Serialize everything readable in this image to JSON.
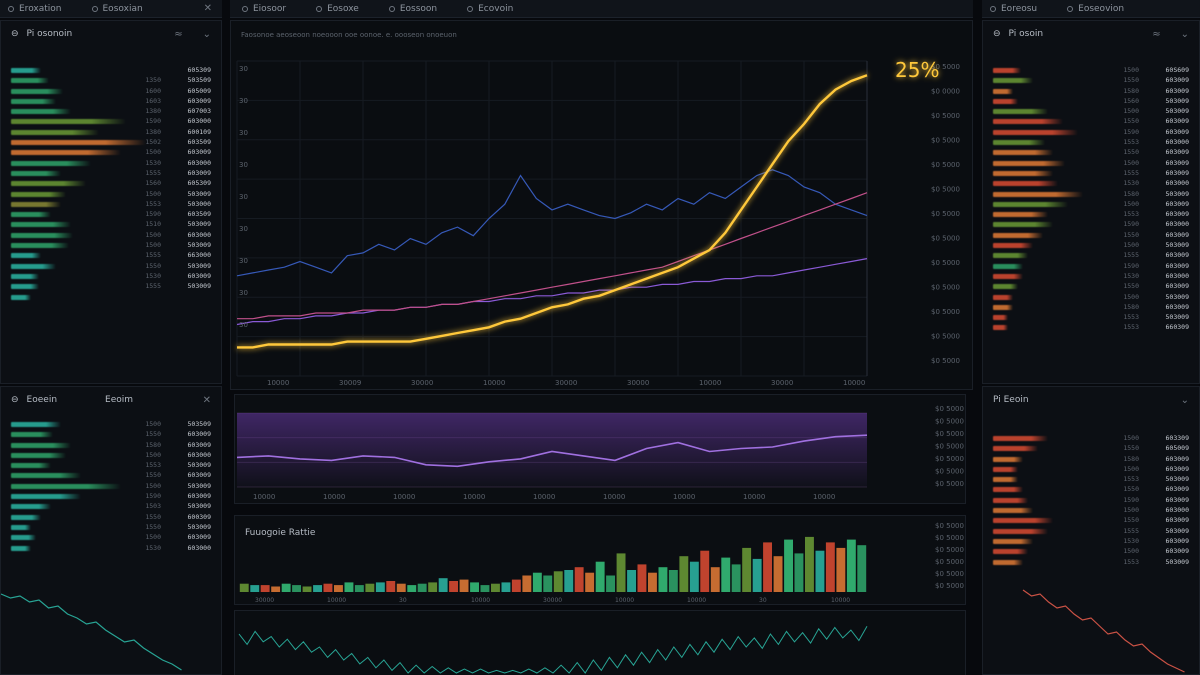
{
  "window": {
    "tabs_left": [
      "Eroxation",
      "Eosoxian"
    ],
    "tabs_center": [
      "Eiosoor",
      "Eosoxe",
      "Eossoon",
      "Ecovoin"
    ],
    "tabs_right": [
      "Eoreosu",
      "Eoseovion"
    ],
    "close_icon": "close-icon"
  },
  "colors": {
    "bg": "#07090d",
    "panel": "#0c0f14",
    "yellow": "#ffc83a",
    "blue": "#3659b8",
    "purple": "#8a5ad6",
    "pink": "#c0508a",
    "green": "#2fa56a",
    "teal": "#2bb5a3",
    "orange": "#e07a35",
    "red": "#d94b32"
  },
  "left_top": {
    "title": "Pi osonoin",
    "rows": [
      {
        "c1": "",
        "c2": "605309",
        "w": 30,
        "color": "#2bb5a3"
      },
      {
        "c1": "1350",
        "c2": "503509",
        "w": 38,
        "color": "#2fa56a"
      },
      {
        "c1": "1600",
        "c2": "605009",
        "w": 52,
        "color": "#2fa56a"
      },
      {
        "c1": "1603",
        "c2": "603009",
        "w": 45,
        "color": "#2fa56a"
      },
      {
        "c1": "1380",
        "c2": "607003",
        "w": 60,
        "color": "#2fa56a"
      },
      {
        "c1": "1590",
        "c2": "603000",
        "w": 115,
        "color": "#6a9a35"
      },
      {
        "c1": "1380",
        "c2": "600109",
        "w": 88,
        "color": "#6a9a35"
      },
      {
        "c1": "1502",
        "c2": "603509",
        "w": 135,
        "color": "#e07a35"
      },
      {
        "c1": "1500",
        "c2": "603009",
        "w": 110,
        "color": "#e07a35"
      },
      {
        "c1": "1530",
        "c2": "603000",
        "w": 80,
        "color": "#2fa56a"
      },
      {
        "c1": "1555",
        "c2": "603009",
        "w": 50,
        "color": "#2fa56a"
      },
      {
        "c1": "1560",
        "c2": "605309",
        "w": 75,
        "color": "#6a9a35"
      },
      {
        "c1": "1500",
        "c2": "503009",
        "w": 55,
        "color": "#6a9a35"
      },
      {
        "c1": "1553",
        "c2": "503000",
        "w": 50,
        "color": "#8a8a35"
      },
      {
        "c1": "1590",
        "c2": "603509",
        "w": 40,
        "color": "#2fa56a"
      },
      {
        "c1": "1510",
        "c2": "503009",
        "w": 60,
        "color": "#2fa56a"
      },
      {
        "c1": "1500",
        "c2": "603000",
        "w": 62,
        "color": "#2fa56a"
      },
      {
        "c1": "1500",
        "c2": "503009",
        "w": 58,
        "color": "#2fa56a"
      },
      {
        "c1": "1555",
        "c2": "663000",
        "w": 30,
        "color": "#2bb5a3"
      },
      {
        "c1": "1550",
        "c2": "503009",
        "w": 45,
        "color": "#2bb5a3"
      },
      {
        "c1": "1530",
        "c2": "603009",
        "w": 28,
        "color": "#2bb5a3"
      },
      {
        "c1": "1555",
        "c2": "503009",
        "w": 28,
        "color": "#2bb5a3"
      },
      {
        "c1": "",
        "c2": "",
        "w": 20,
        "color": "#2bb5a3"
      }
    ]
  },
  "left_bottom": {
    "title": "Eoeein",
    "meta": "Eeoim",
    "rows": [
      {
        "c1": "1500",
        "c2": "503509",
        "w": 50,
        "color": "#2bb5a3"
      },
      {
        "c1": "1550",
        "c2": "603009",
        "w": 42,
        "color": "#2fa56a"
      },
      {
        "c1": "1580",
        "c2": "603009",
        "w": 60,
        "color": "#2fa56a"
      },
      {
        "c1": "1500",
        "c2": "603000",
        "w": 55,
        "color": "#2fa56a"
      },
      {
        "c1": "1553",
        "c2": "503009",
        "w": 40,
        "color": "#2fa56a"
      },
      {
        "c1": "1550",
        "c2": "603009",
        "w": 70,
        "color": "#2fa56a"
      },
      {
        "c1": "1500",
        "c2": "503009",
        "w": 110,
        "color": "#2fa56a"
      },
      {
        "c1": "1590",
        "c2": "603009",
        "w": 70,
        "color": "#2bb5a3"
      },
      {
        "c1": "1503",
        "c2": "503009",
        "w": 40,
        "color": "#2bb5a3"
      },
      {
        "c1": "1550",
        "c2": "600309",
        "w": 30,
        "color": "#2bb5a3"
      },
      {
        "c1": "1550",
        "c2": "503009",
        "w": 20,
        "color": "#2bb5a3"
      },
      {
        "c1": "1500",
        "c2": "603009",
        "w": 25,
        "color": "#2bb5a3"
      },
      {
        "c1": "1530",
        "c2": "603000",
        "w": 20,
        "color": "#2bb5a3"
      }
    ]
  },
  "right_top": {
    "title": "Pi osoin",
    "rows": [
      {
        "c1": "1500",
        "c2": "60S609",
        "w": 28,
        "color": "#d94b32"
      },
      {
        "c1": "1550",
        "c2": "603009",
        "w": 40,
        "color": "#6a9a35"
      },
      {
        "c1": "1580",
        "c2": "603009",
        "w": 20,
        "color": "#e07a35"
      },
      {
        "c1": "1560",
        "c2": "503009",
        "w": 25,
        "color": "#d94b32"
      },
      {
        "c1": "1500",
        "c2": "503009",
        "w": 55,
        "color": "#6a9a35"
      },
      {
        "c1": "1550",
        "c2": "603009",
        "w": 70,
        "color": "#d94b32"
      },
      {
        "c1": "1590",
        "c2": "603009",
        "w": 85,
        "color": "#d94b32"
      },
      {
        "c1": "1553",
        "c2": "603000",
        "w": 52,
        "color": "#6a9a35"
      },
      {
        "c1": "1550",
        "c2": "603009",
        "w": 60,
        "color": "#e07a35"
      },
      {
        "c1": "1500",
        "c2": "603009",
        "w": 72,
        "color": "#e07a35"
      },
      {
        "c1": "1555",
        "c2": "603009",
        "w": 60,
        "color": "#e07a35"
      },
      {
        "c1": "1530",
        "c2": "603000",
        "w": 65,
        "color": "#d94b32"
      },
      {
        "c1": "1580",
        "c2": "503009",
        "w": 90,
        "color": "#e07a35"
      },
      {
        "c1": "1500",
        "c2": "603009",
        "w": 75,
        "color": "#6a9a35"
      },
      {
        "c1": "1553",
        "c2": "603009",
        "w": 55,
        "color": "#e07a35"
      },
      {
        "c1": "1590",
        "c2": "603000",
        "w": 60,
        "color": "#6a9a35"
      },
      {
        "c1": "1550",
        "c2": "603009",
        "w": 50,
        "color": "#e07a35"
      },
      {
        "c1": "1500",
        "c2": "503009",
        "w": 40,
        "color": "#d94b32"
      },
      {
        "c1": "1555",
        "c2": "603009",
        "w": 35,
        "color": "#6a9a35"
      },
      {
        "c1": "1590",
        "c2": "603009",
        "w": 30,
        "color": "#2fa56a"
      },
      {
        "c1": "1530",
        "c2": "603000",
        "w": 30,
        "color": "#d94b32"
      },
      {
        "c1": "1550",
        "c2": "603009",
        "w": 25,
        "color": "#6a9a35"
      },
      {
        "c1": "1500",
        "c2": "503009",
        "w": 20,
        "color": "#d94b32"
      },
      {
        "c1": "1580",
        "c2": "603009",
        "w": 20,
        "color": "#e07a35"
      },
      {
        "c1": "1553",
        "c2": "503009",
        "w": 15,
        "color": "#d94b32"
      },
      {
        "c1": "1553",
        "c2": "660309",
        "w": 15,
        "color": "#d94b32"
      }
    ]
  },
  "right_bottom": {
    "title": "Pi Eeoin",
    "rows": [
      {
        "c1": "1500",
        "c2": "603309",
        "w": 55,
        "color": "#d94b32"
      },
      {
        "c1": "1550",
        "c2": "605009",
        "w": 45,
        "color": "#d94b32"
      },
      {
        "c1": "1580",
        "c2": "603009",
        "w": 30,
        "color": "#e07a35"
      },
      {
        "c1": "1500",
        "c2": "603009",
        "w": 25,
        "color": "#d94b32"
      },
      {
        "c1": "1553",
        "c2": "503009",
        "w": 25,
        "color": "#e07a35"
      },
      {
        "c1": "1550",
        "c2": "603009",
        "w": 30,
        "color": "#d94b32"
      },
      {
        "c1": "1590",
        "c2": "603009",
        "w": 35,
        "color": "#d94b32"
      },
      {
        "c1": "1500",
        "c2": "603000",
        "w": 40,
        "color": "#e07a35"
      },
      {
        "c1": "1550",
        "c2": "603009",
        "w": 60,
        "color": "#d94b32"
      },
      {
        "c1": "1555",
        "c2": "503009",
        "w": 55,
        "color": "#d94b32"
      },
      {
        "c1": "1530",
        "c2": "603009",
        "w": 40,
        "color": "#e07a35"
      },
      {
        "c1": "1500",
        "c2": "603009",
        "w": 35,
        "color": "#d94b32"
      },
      {
        "c1": "1553",
        "c2": "503009",
        "w": 30,
        "color": "#e07a35"
      }
    ]
  },
  "main_chart": {
    "header": "Faosonoe aeoseoon noeooon ooe oonoe. e. oooseon onoeuon",
    "callout": "25%",
    "y_left": [
      "30",
      "30",
      "30",
      "30",
      "30",
      "30",
      "30",
      "30",
      "30"
    ],
    "y_right": [
      "$0 5000",
      "$0 0000",
      "$0 5000",
      "$0 5000",
      "$0 5000",
      "$0 5000",
      "$0 5000",
      "$0 5000",
      "$0 5000",
      "$0 5000",
      "$0 5000",
      "$0 5000",
      "$0 5000"
    ],
    "x_labels": [
      "10000",
      "30009",
      "30000",
      "10000",
      "30000",
      "30000",
      "10000",
      "30000",
      "10000"
    ]
  },
  "mid_chart": {
    "y_right": [
      "$0 5000",
      "$0 5000",
      "$0 5000",
      "$0 5000",
      "$0 5000",
      "$0 5000",
      "$0 5000"
    ],
    "x_labels": [
      "10000",
      "10000",
      "10000",
      "10000",
      "10000",
      "10000",
      "10000",
      "10000",
      "10000"
    ]
  },
  "bar_chart": {
    "title": "Fuuogoie Rattie",
    "y_right": [
      "$0 5000",
      "$0 5000",
      "$0 5000",
      "$0 5000",
      "$0 5000",
      "$0 5000"
    ],
    "x_labels": [
      "30000",
      "10000",
      "30",
      "10000",
      "30000",
      "10000",
      "10000",
      "30",
      "10000"
    ]
  },
  "chart_data": [
    {
      "type": "line",
      "title": "",
      "x": [
        0,
        1,
        2,
        3,
        4,
        5,
        6,
        7,
        8,
        9,
        10,
        11,
        12,
        13,
        14,
        15,
        16,
        17,
        18,
        19,
        20,
        21,
        22,
        23,
        24,
        25,
        26,
        27,
        28,
        29,
        30,
        31,
        32,
        33,
        34,
        35,
        36,
        37,
        38,
        39,
        40
      ],
      "series": [
        {
          "values": [
            10,
            10,
            11,
            11,
            11,
            11,
            11,
            12,
            12,
            12,
            12,
            12,
            13,
            14,
            15,
            16,
            17,
            19,
            20,
            22,
            24,
            25,
            27,
            28,
            30,
            32,
            34,
            36,
            38,
            41,
            44,
            50,
            58,
            66,
            74,
            82,
            88,
            95,
            100,
            103,
            105
          ],
          "color": "#ffc83a"
        },
        {
          "values": [
            35,
            36,
            37,
            38,
            40,
            38,
            36,
            42,
            43,
            46,
            44,
            48,
            46,
            50,
            52,
            49,
            55,
            60,
            70,
            62,
            58,
            60,
            58,
            56,
            55,
            57,
            60,
            58,
            62,
            60,
            64,
            62,
            66,
            70,
            72,
            70,
            66,
            64,
            60,
            58,
            56
          ],
          "color": "#3659b8"
        },
        {
          "values": [
            18,
            19,
            19,
            20,
            20,
            21,
            21,
            22,
            22,
            23,
            23,
            24,
            24,
            25,
            25,
            26,
            26,
            27,
            27,
            28,
            28,
            29,
            29,
            30,
            30,
            31,
            31,
            32,
            32,
            33,
            33,
            34,
            34,
            35,
            35,
            36,
            37,
            38,
            39,
            40,
            41
          ],
          "color": "#8a5ad6"
        },
        {
          "values": [
            20,
            20,
            21,
            21,
            21,
            22,
            22,
            22,
            23,
            23,
            23,
            24,
            24,
            25,
            25,
            26,
            27,
            28,
            29,
            30,
            31,
            32,
            33,
            34,
            35,
            36,
            37,
            38,
            40,
            42,
            44,
            46,
            48,
            50,
            52,
            54,
            56,
            58,
            60,
            62,
            64
          ],
          "color": "#c0508a"
        }
      ],
      "ylim": [
        0,
        110
      ]
    },
    {
      "type": "line",
      "x": [
        0,
        1,
        2,
        3,
        4,
        5,
        6,
        7,
        8,
        9,
        10,
        11,
        12,
        13,
        14,
        15,
        16,
        17,
        18,
        19,
        20
      ],
      "series": [
        {
          "values": [
            40,
            42,
            38,
            36,
            42,
            40,
            30,
            28,
            34,
            38,
            48,
            42,
            36,
            52,
            60,
            48,
            52,
            54,
            62,
            68,
            70
          ],
          "color": "#a070e0"
        }
      ],
      "ylim": [
        0,
        100
      ]
    },
    {
      "type": "bar",
      "title": "Fuuogoie Rattie",
      "values": [
        6,
        5,
        5,
        4,
        6,
        5,
        4,
        5,
        6,
        5,
        7,
        5,
        6,
        7,
        8,
        6,
        5,
        6,
        7,
        10,
        8,
        9,
        7,
        5,
        6,
        7,
        9,
        12,
        14,
        12,
        15,
        16,
        18,
        14,
        22,
        12,
        28,
        16,
        20,
        14,
        18,
        16,
        26,
        22,
        30,
        18,
        25,
        20,
        32,
        24,
        36,
        26,
        38,
        28,
        40,
        30,
        36,
        32,
        38,
        34
      ],
      "ylim": [
        0,
        45
      ]
    },
    {
      "type": "line",
      "x": [
        0,
        1,
        2,
        3,
        4,
        5,
        6,
        7,
        8,
        9,
        10,
        11,
        12,
        13,
        14,
        15,
        16,
        17,
        18,
        19,
        20,
        21,
        22,
        23,
        24,
        25,
        26,
        27,
        28,
        29,
        30,
        31,
        32,
        33,
        34,
        35,
        36,
        37,
        38,
        39
      ],
      "series": [
        {
          "values": [
            30,
            32,
            28,
            26,
            24,
            20,
            18,
            15,
            12,
            10,
            8,
            6,
            5,
            4,
            3,
            3,
            2,
            2,
            3,
            4,
            6,
            8,
            10,
            12,
            14,
            16,
            18,
            20,
            22,
            24,
            26,
            28,
            27,
            30,
            32,
            31,
            34,
            35,
            33,
            36
          ]
        }
      ],
      "ylim": [
        0,
        40
      ]
    }
  ]
}
